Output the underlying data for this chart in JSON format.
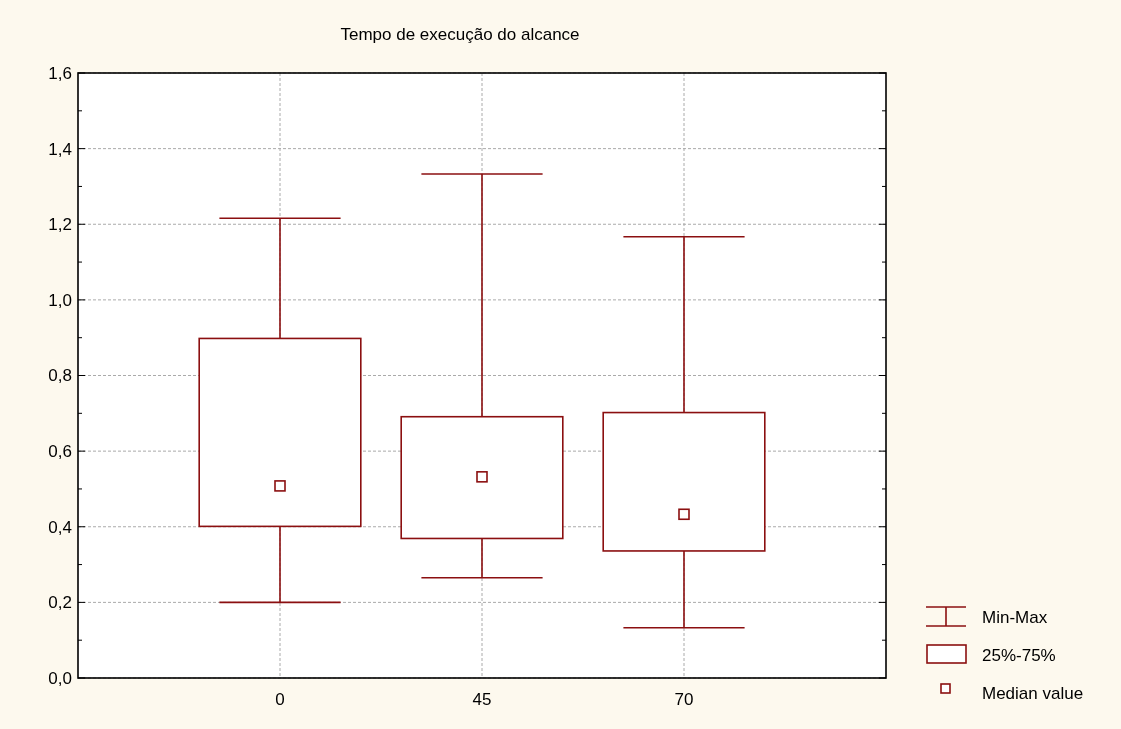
{
  "chart_data": {
    "type": "box",
    "title": "Tempo de execução do alcance",
    "categories": [
      "0",
      "45",
      "70"
    ],
    "series": [
      {
        "color": "#8b0f10",
        "boxes": [
          {
            "low": 0.2,
            "q1": 0.401,
            "median": 0.508,
            "q3": 0.898,
            "high": 1.216
          },
          {
            "low": 0.265,
            "q1": 0.369,
            "median": 0.532,
            "q3": 0.691,
            "high": 1.333
          },
          {
            "low": 0.133,
            "q1": 0.336,
            "median": 0.433,
            "q3": 0.702,
            "high": 1.167
          }
        ]
      }
    ],
    "ylim": [
      0,
      1.6
    ],
    "yticks": [
      {
        "value": 0,
        "label": "0,0"
      },
      {
        "value": 0.1,
        "label": null
      },
      {
        "value": 0.2,
        "label": "0,2"
      },
      {
        "value": 0.3,
        "label": null
      },
      {
        "value": 0.4,
        "label": "0,4"
      },
      {
        "value": 0.5,
        "label": null
      },
      {
        "value": 0.6,
        "label": "0,6"
      },
      {
        "value": 0.7,
        "label": null
      },
      {
        "value": 0.8,
        "label": "0,8"
      },
      {
        "value": 0.9,
        "label": null
      },
      {
        "value": 1.0,
        "label": "1,0"
      },
      {
        "value": 1.1,
        "label": null
      },
      {
        "value": 1.2,
        "label": "1,2"
      },
      {
        "value": 1.3,
        "label": null
      },
      {
        "value": 1.4,
        "label": "1,4"
      },
      {
        "value": 1.5,
        "label": null
      },
      {
        "value": 1.6,
        "label": "1,6"
      }
    ],
    "grid": true,
    "marker": "square",
    "annotations": [
      "Min-Max",
      "25%-75%",
      "Median value"
    ]
  }
}
